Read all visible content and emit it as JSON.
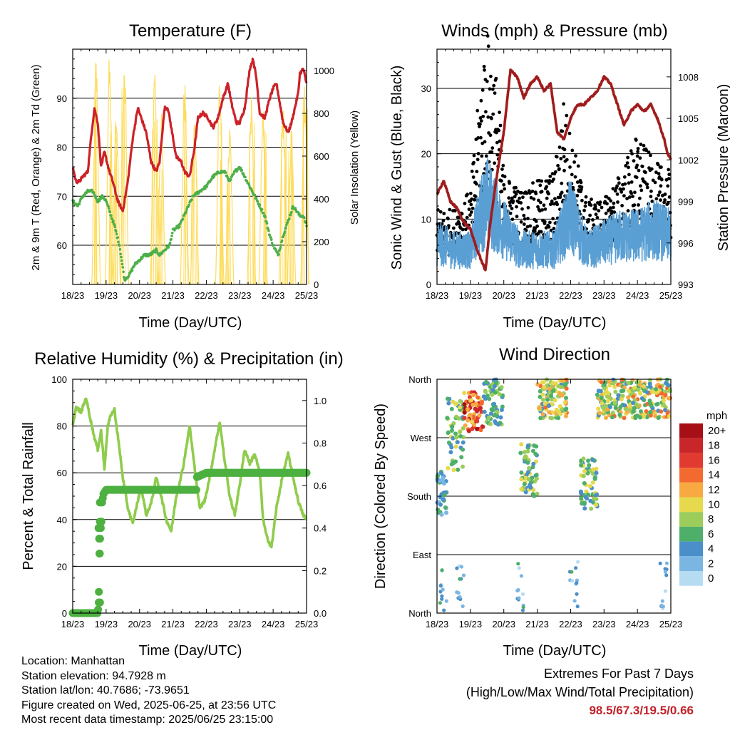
{
  "panels": {
    "temperature": {
      "title": "Temperature (F)",
      "ylabel_left": "2m & 9m T (Red, Orange) & 2m Td (Green)",
      "ylabel_right": "Solar Insolation (Yellow)",
      "xlabel": "Time (Day/UTC)"
    },
    "winds": {
      "title": "Winds (mph) & Pressure (mb)",
      "ylabel_left": "Sonic Wind & Gust (Blue, Black)",
      "ylabel_right": "Station Pressure (Maroon)",
      "xlabel": "Time (Day/UTC)"
    },
    "humidity": {
      "title": "Relative Humidity (%) & Precipitation (in)",
      "ylabel_left": "Percent & Total Rainfall",
      "xlabel": "Time (Day/UTC)"
    },
    "direction": {
      "title": "Wind Direction",
      "ylabel_left": "Direction (Colored By Speed)",
      "xlabel": "Time (Day/UTC)",
      "legend_title": "mph"
    }
  },
  "info": {
    "location": "Location: Manhattan",
    "elevation": "Station elevation: 94.7928 m",
    "latlon": "Station lat/lon: 40.7686; -73.9651",
    "created": "Figure created on Wed, 2025-06-25, at 23:56 UTC",
    "recent": "Most recent data timestamp: 2025/06/25 23:15:00"
  },
  "extremes": {
    "line1": "Extremes For Past 7 Days",
    "line2": "(High/Low/Max Wind/Total Precipitation)",
    "values": "98.5/67.3/19.5/0.66"
  },
  "colors": {
    "temp_red": "#cc2229",
    "dewpoint_green": "#4daf4a",
    "solar_yellow": "#fddc5c",
    "wind_blue": "#5a9fd4",
    "gust_black": "#000000",
    "pressure_maroon": "#a01c1c",
    "rh_lightgreen": "#8fcc4c",
    "precip_green": "#4db040"
  },
  "chart_data": [
    {
      "type": "line",
      "title": "Temperature (F)",
      "xlabel": "Time (Day/UTC)",
      "x_ticks": [
        "18/23",
        "19/23",
        "20/23",
        "21/23",
        "22/23",
        "23/23",
        "24/23",
        "25/23"
      ],
      "xlim": [
        0,
        7
      ],
      "ylim": [
        52,
        100
      ],
      "y_ticks": [
        60,
        70,
        80,
        90
      ],
      "y2lim": [
        0,
        1100
      ],
      "y2_ticks": [
        0,
        200,
        400,
        600,
        800,
        1000
      ],
      "series": [
        {
          "role": "2m Temperature",
          "color": "#cc2229",
          "axis": "left",
          "x": [
            0,
            0.1,
            0.2,
            0.3,
            0.45,
            0.55,
            0.65,
            0.75,
            0.85,
            0.95,
            1.1,
            1.2,
            1.35,
            1.5,
            1.65,
            1.8,
            1.95,
            2.05,
            2.2,
            2.35,
            2.5,
            2.6,
            2.75,
            2.85,
            3.0,
            3.1,
            3.25,
            3.35,
            3.5,
            3.65,
            3.75,
            3.9,
            4.05,
            4.2,
            4.35,
            4.5,
            4.65,
            4.75,
            4.9,
            5.0,
            5.15,
            5.3,
            5.4,
            5.5,
            5.6,
            5.75,
            5.9,
            6.0,
            6.1,
            6.2,
            6.3,
            6.45,
            6.55,
            6.65,
            6.75,
            6.8,
            6.9,
            7.0
          ],
          "y": [
            76,
            73,
            73,
            74,
            75,
            82,
            88,
            85,
            76,
            79,
            75,
            73,
            69,
            67,
            73,
            82,
            88,
            86,
            83,
            77,
            75,
            77,
            88,
            88,
            82,
            78,
            77,
            75,
            74,
            80,
            86,
            87,
            86,
            84,
            86,
            90,
            93,
            89,
            85,
            85,
            88,
            96,
            98,
            94,
            87,
            86,
            90,
            92,
            93,
            89,
            85,
            83,
            85,
            88,
            91,
            95,
            96,
            93
          ]
        },
        {
          "role": "2m Dew Point",
          "color": "#4daf4a",
          "axis": "left",
          "x": [
            0,
            0.15,
            0.3,
            0.45,
            0.6,
            0.75,
            0.9,
            1.0,
            1.1,
            1.25,
            1.4,
            1.55,
            1.7,
            1.85,
            2.0,
            2.15,
            2.3,
            2.5,
            2.6,
            2.75,
            2.9,
            3.0,
            3.2,
            3.4,
            3.6,
            3.8,
            4.0,
            4.2,
            4.4,
            4.55,
            4.7,
            4.85,
            5.0,
            5.15,
            5.3,
            5.45,
            5.6,
            5.75,
            5.9,
            6.0,
            6.15,
            6.3,
            6.45,
            6.6,
            6.7,
            6.8,
            6.9,
            7.0
          ],
          "y": [
            69,
            68,
            70,
            71,
            71,
            69,
            70,
            69,
            67,
            64,
            60,
            53,
            54,
            56,
            57,
            58,
            58,
            59,
            58,
            59,
            60,
            63,
            64,
            67,
            70,
            71,
            72,
            74,
            75,
            75,
            73,
            75,
            76,
            74,
            72,
            70,
            68,
            66,
            62,
            60,
            58,
            62,
            65,
            68,
            67,
            66,
            66,
            64
          ]
        },
        {
          "role": "Solar Insolation",
          "color": "#fddc5c",
          "axis": "right",
          "peaks_x": [
            0.7,
            1.1,
            1.3,
            1.55,
            2.45,
            2.65,
            3.35,
            3.65,
            4.4,
            4.7,
            5.35,
            5.7,
            6.3,
            6.55,
            6.95
          ],
          "peaks_y": [
            1100,
            1080,
            900,
            1050,
            1000,
            820,
            980,
            820,
            950,
            750,
            920,
            870,
            900,
            800,
            1000
          ]
        }
      ]
    },
    {
      "type": "scatter",
      "title": "Winds (mph) & Pressure (mb)",
      "xlabel": "Time (Day/UTC)",
      "x_ticks": [
        "18/23",
        "19/23",
        "20/23",
        "21/23",
        "22/23",
        "23/23",
        "24/23",
        "25/23"
      ],
      "xlim": [
        0,
        7
      ],
      "ylim": [
        0,
        36
      ],
      "y_ticks": [
        0,
        10,
        20,
        30
      ],
      "y2lim": [
        993,
        1010
      ],
      "y2_ticks": [
        993,
        996,
        999,
        1002,
        1005,
        1008
      ],
      "series": [
        {
          "role": "Sonic Wind",
          "color": "#5a9fd4",
          "axis": "left",
          "x": [
            0,
            0.5,
            1.0,
            1.3,
            1.5,
            2.0,
            2.5,
            3.0,
            3.5,
            4.0,
            4.5,
            5.0,
            5.5,
            6.0,
            6.5,
            7.0
          ],
          "y": [
            6,
            5,
            5,
            10,
            12,
            8,
            5,
            5,
            5,
            10,
            5,
            6,
            7,
            7,
            8,
            7
          ]
        },
        {
          "role": "Gust",
          "color": "#000000",
          "axis": "left",
          "x": [
            0,
            0.5,
            1.0,
            1.3,
            1.5,
            1.8,
            2.0,
            2.5,
            3.0,
            3.5,
            3.8,
            4.0,
            4.5,
            5.0,
            5.5,
            6.0,
            6.5,
            7.0
          ],
          "y": [
            8,
            8,
            10,
            22,
            27,
            22,
            12,
            10,
            11,
            12,
            20,
            16,
            9,
            9,
            12,
            16,
            13,
            12
          ]
        },
        {
          "role": "Station Pressure",
          "color": "#a01c1c",
          "axis": "right",
          "x": [
            0,
            0.2,
            0.4,
            0.6,
            0.8,
            1.0,
            1.2,
            1.45,
            1.6,
            1.8,
            2.0,
            2.2,
            2.4,
            2.6,
            2.8,
            3.0,
            3.2,
            3.4,
            3.6,
            3.8,
            4.0,
            4.2,
            4.4,
            4.6,
            4.8,
            5.0,
            5.2,
            5.4,
            5.6,
            5.8,
            6.0,
            6.2,
            6.4,
            6.6,
            6.8,
            6.9,
            7.0
          ],
          "y": [
            999.5,
            1000.5,
            999,
            998.5,
            997.5,
            997,
            995.5,
            994,
            997.5,
            1001,
            1004,
            1008.5,
            1008,
            1006.5,
            1007.5,
            1008,
            1007,
            1007.5,
            1004,
            1003.5,
            1005,
            1006,
            1006,
            1006.5,
            1007,
            1008,
            1007.5,
            1006,
            1004.5,
            1005.5,
            1006,
            1005.5,
            1006,
            1005,
            1003.5,
            1002.5,
            1002
          ]
        }
      ]
    },
    {
      "type": "line",
      "title": "Relative Humidity (%) & Precipitation (in)",
      "xlabel": "Time (Day/UTC)",
      "x_ticks": [
        "18/23",
        "19/23",
        "20/23",
        "21/23",
        "22/23",
        "23/23",
        "24/23",
        "25/23"
      ],
      "xlim": [
        0,
        7
      ],
      "ylim": [
        0,
        100
      ],
      "y_ticks": [
        0,
        20,
        40,
        60,
        80,
        100
      ],
      "y2lim": [
        0,
        1.1
      ],
      "y2_ticks": [
        "0.0",
        "0.2",
        "0.4",
        "0.6",
        "0.8",
        "1.0"
      ],
      "series": [
        {
          "role": "Relative Humidity",
          "color": "#8fcc4c",
          "axis": "left",
          "x": [
            0,
            0.1,
            0.25,
            0.4,
            0.5,
            0.65,
            0.75,
            0.85,
            0.95,
            1.05,
            1.15,
            1.25,
            1.4,
            1.5,
            1.65,
            1.8,
            1.9,
            2.05,
            2.2,
            2.35,
            2.5,
            2.65,
            2.8,
            2.95,
            3.1,
            3.3,
            3.5,
            3.65,
            3.8,
            3.95,
            4.1,
            4.25,
            4.4,
            4.55,
            4.7,
            4.85,
            5.0,
            5.15,
            5.3,
            5.45,
            5.6,
            5.7,
            5.8,
            5.95,
            6.1,
            6.3,
            6.45,
            6.6,
            6.75,
            6.9,
            7.0
          ],
          "y": [
            80,
            88,
            86,
            92,
            85,
            75,
            70,
            78,
            62,
            80,
            85,
            87,
            70,
            58,
            45,
            38,
            45,
            54,
            42,
            47,
            58,
            50,
            40,
            35,
            50,
            62,
            80,
            62,
            45,
            48,
            58,
            70,
            82,
            65,
            50,
            42,
            55,
            70,
            64,
            68,
            60,
            40,
            33,
            28,
            45,
            60,
            68,
            58,
            48,
            42,
            40
          ]
        },
        {
          "role": "Total Precipitation",
          "color": "#4db040",
          "axis": "right",
          "x": [
            0,
            0.75,
            0.78,
            0.78,
            0.8,
            0.82,
            0.84,
            0.86,
            0.88,
            0.92,
            1.0,
            1.5,
            2.0,
            3.0,
            3.7,
            3.72,
            4.0,
            5.0,
            6.0,
            7.0
          ],
          "y": [
            0,
            0,
            0.05,
            0.1,
            0.28,
            0.35,
            0.4,
            0.43,
            0.52,
            0.56,
            0.58,
            0.58,
            0.58,
            0.58,
            0.58,
            0.64,
            0.66,
            0.66,
            0.66,
            0.66
          ]
        }
      ]
    },
    {
      "type": "scatter",
      "title": "Wind Direction",
      "xlabel": "Time (Day/UTC)",
      "x_ticks": [
        "18/23",
        "19/23",
        "20/23",
        "21/23",
        "22/23",
        "23/23",
        "24/23",
        "25/23"
      ],
      "xlim": [
        0,
        7
      ],
      "y_categories": [
        "North",
        "East",
        "South",
        "West",
        "North"
      ],
      "ylim": [
        0,
        360
      ],
      "legend": {
        "title": "mph",
        "labels": [
          "20+",
          "18",
          "16",
          "14",
          "12",
          "10",
          "8",
          "6",
          "4",
          "2",
          "0"
        ],
        "colors": [
          "#a50f15",
          "#c9262a",
          "#e03a31",
          "#f26a2f",
          "#f9a942",
          "#e6d94e",
          "#9ccc5a",
          "#4daf6a",
          "#4a8fc9",
          "#7bb6e3",
          "#b6dcf2"
        ]
      },
      "clusters": [
        {
          "x": [
            0,
            0.3
          ],
          "dir": [
            150,
            220
          ],
          "speed": [
            2,
            6
          ]
        },
        {
          "x": [
            0.3,
            0.8
          ],
          "dir": [
            220,
            330
          ],
          "speed": [
            4,
            10
          ]
        },
        {
          "x": [
            0.8,
            1.4
          ],
          "dir": [
            280,
            340
          ],
          "speed": [
            10,
            20
          ]
        },
        {
          "x": [
            1.4,
            2.0
          ],
          "dir": [
            290,
            360
          ],
          "speed": [
            4,
            8
          ]
        },
        {
          "x": [
            2.5,
            3.0
          ],
          "dir": [
            180,
            260
          ],
          "speed": [
            4,
            10
          ]
        },
        {
          "x": [
            3.0,
            3.9
          ],
          "dir": [
            300,
            360
          ],
          "speed": [
            4,
            14
          ]
        },
        {
          "x": [
            4.3,
            4.8
          ],
          "dir": [
            160,
            240
          ],
          "speed": [
            4,
            10
          ]
        },
        {
          "x": [
            4.8,
            7.0
          ],
          "dir": [
            300,
            360
          ],
          "speed": [
            4,
            14
          ]
        }
      ]
    }
  ]
}
